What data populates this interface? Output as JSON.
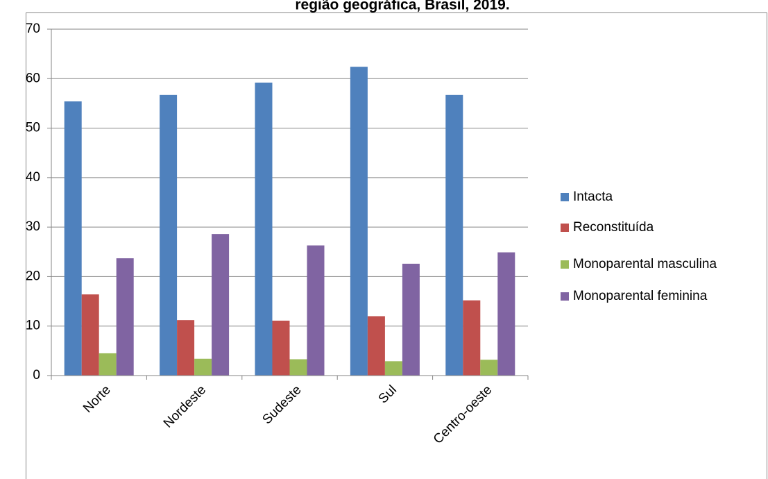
{
  "chart_data": {
    "type": "bar",
    "title": "região geográfica, Brasil, 2019.",
    "categories": [
      "Norte",
      "Nordeste",
      "Sudeste",
      "Sul",
      "Centro-oeste"
    ],
    "series": [
      {
        "name": "Intacta",
        "color": "#4f81bd",
        "values": [
          55.4,
          56.7,
          59.2,
          62.4,
          56.7
        ]
      },
      {
        "name": "Reconstituída",
        "color": "#c0504d",
        "values": [
          16.4,
          11.2,
          11.1,
          12.0,
          15.2
        ]
      },
      {
        "name": "Monoparental masculina",
        "color": "#9bbb59",
        "values": [
          4.5,
          3.4,
          3.3,
          2.9,
          3.2
        ]
      },
      {
        "name": "Monoparental feminina",
        "color": "#8064a2",
        "values": [
          23.7,
          28.6,
          26.3,
          22.6,
          24.9
        ]
      }
    ],
    "ylim": [
      0,
      70
    ],
    "yticks": [
      0,
      10,
      20,
      30,
      40,
      50,
      60,
      70
    ],
    "grid": true,
    "legend": "right"
  }
}
